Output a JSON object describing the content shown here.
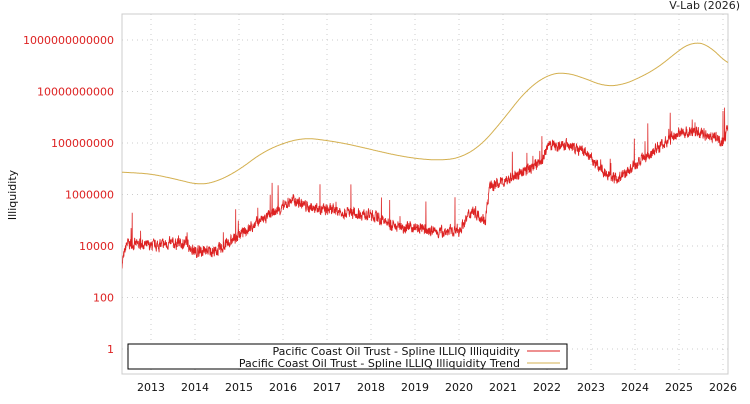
{
  "chart_data": {
    "type": "line",
    "title": "V-Lab (2026)",
    "xlabel": "",
    "ylabel": "Illiquidity",
    "yscale": "log",
    "ylim": [
      0.15,
      10000000000000.0
    ],
    "xlim": [
      2012.34,
      2026.12
    ],
    "grid": true,
    "legend_placement": "bottom",
    "x_ticks": [
      "2013",
      "2014",
      "2015",
      "2016",
      "2017",
      "2018",
      "2019",
      "2020",
      "2021",
      "2022",
      "2023",
      "2024",
      "2025",
      "2026"
    ],
    "y_ticks": [
      "1",
      "100",
      "10000",
      "1000000",
      "100000000",
      "10000000000",
      "1000000000000"
    ],
    "colors": {
      "series": "#dd2222",
      "trend": "#d4b050",
      "ytick": "#dd2222"
    },
    "series": [
      {
        "name": "Pacific Coast Oil Trust - Spline ILLIQ Illiquidity",
        "x": [
          2012.34,
          2012.45,
          2013.0,
          2013.5,
          2013.8,
          2014.0,
          2014.5,
          2015.0,
          2015.5,
          2016.0,
          2016.2,
          2016.6,
          2017.0,
          2017.5,
          2018.0,
          2018.5,
          2019.0,
          2019.5,
          2020.0,
          2020.3,
          2020.6,
          2020.7,
          2021.0,
          2021.5,
          2021.9,
          2022.0,
          2022.5,
          2022.9,
          2023.2,
          2023.6,
          2024.0,
          2024.5,
          2025.0,
          2025.5,
          2025.9,
          2026.0,
          2026.12
        ],
        "log10": [
          3.3,
          4.1,
          4.0,
          4.1,
          4.1,
          3.8,
          3.8,
          4.4,
          5.0,
          5.5,
          5.8,
          5.5,
          5.4,
          5.3,
          5.2,
          4.8,
          4.7,
          4.55,
          4.6,
          5.4,
          5.0,
          6.3,
          6.5,
          6.9,
          7.3,
          7.9,
          7.9,
          7.6,
          7.0,
          6.6,
          7.1,
          7.8,
          8.4,
          8.4,
          8.2,
          8.0,
          8.6
        ]
      },
      {
        "name": "Pacific Coast Oil Trust - Spline ILLIQ Illiquidity Trend",
        "x": [
          2012.34,
          2013.0,
          2013.5,
          2014.1,
          2014.5,
          2015.0,
          2015.5,
          2016.0,
          2016.5,
          2017.0,
          2017.5,
          2018.0,
          2018.5,
          2019.0,
          2019.5,
          2020.0,
          2020.5,
          2021.0,
          2021.5,
          2022.0,
          2022.4,
          2022.8,
          2023.3,
          2023.7,
          2024.0,
          2024.5,
          2025.0,
          2025.3,
          2025.7,
          2026.12
        ],
        "log10": [
          6.87,
          6.8,
          6.62,
          6.37,
          6.5,
          6.95,
          7.6,
          8.0,
          8.2,
          8.1,
          7.95,
          7.75,
          7.55,
          7.4,
          7.33,
          7.4,
          7.9,
          8.9,
          10.0,
          10.65,
          10.75,
          10.55,
          10.2,
          10.25,
          10.45,
          10.9,
          11.6,
          11.95,
          11.8,
          11.0
        ]
      }
    ]
  }
}
